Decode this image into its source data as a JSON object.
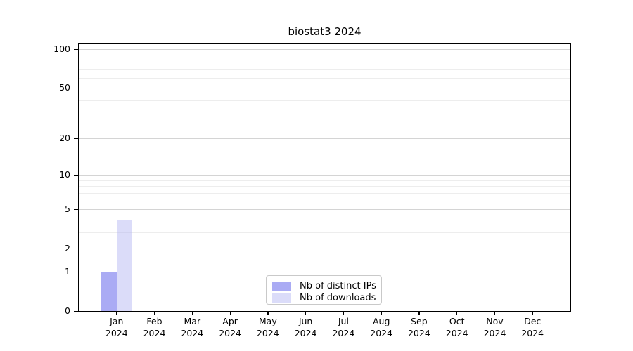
{
  "title": "biostat3 2024",
  "colors": {
    "bar_distinct_ips": "rgba(146,147,241,0.78)",
    "bar_downloads": "rgba(175,177,242,0.45)",
    "grid_major": "#d4d4d4",
    "grid_minor": "#ededed",
    "axis": "#000000",
    "legend_border": "#c9c9c9",
    "text": "#000000"
  },
  "legend": {
    "items": [
      {
        "label": "Nb of distinct IPs",
        "color_key": "bar_distinct_ips"
      },
      {
        "label": "Nb of downloads",
        "color_key": "bar_downloads"
      }
    ]
  },
  "chart_data": {
    "type": "bar",
    "title": "biostat3 2024",
    "categories": [
      {
        "line1": "Jan",
        "line2": "2024"
      },
      {
        "line1": "Feb",
        "line2": "2024"
      },
      {
        "line1": "Mar",
        "line2": "2024"
      },
      {
        "line1": "Apr",
        "line2": "2024"
      },
      {
        "line1": "May",
        "line2": "2024"
      },
      {
        "line1": "Jun",
        "line2": "2024"
      },
      {
        "line1": "Jul",
        "line2": "2024"
      },
      {
        "line1": "Aug",
        "line2": "2024"
      },
      {
        "line1": "Sep",
        "line2": "2024"
      },
      {
        "line1": "Oct",
        "line2": "2024"
      },
      {
        "line1": "Nov",
        "line2": "2024"
      },
      {
        "line1": "Dec",
        "line2": "2024"
      }
    ],
    "series": [
      {
        "name": "Nb of distinct IPs",
        "color_key": "bar_distinct_ips",
        "values": [
          1,
          0,
          0,
          0,
          0,
          0,
          0,
          0,
          0,
          0,
          0,
          0
        ]
      },
      {
        "name": "Nb of downloads",
        "color_key": "bar_downloads",
        "values": [
          4,
          0,
          0,
          0,
          0,
          0,
          0,
          0,
          0,
          0,
          0,
          0
        ]
      }
    ],
    "xlabel": "",
    "ylabel": "",
    "yscale": "log1p",
    "yticks_labeled": [
      100,
      50,
      20,
      10,
      5,
      2,
      1,
      0
    ],
    "yticks_minor": [
      90,
      80,
      70,
      60,
      40,
      30,
      9,
      8,
      7,
      6,
      4,
      3
    ],
    "ylim": [
      0,
      110
    ],
    "grid": true,
    "legend_position": "lower-center-inside"
  }
}
